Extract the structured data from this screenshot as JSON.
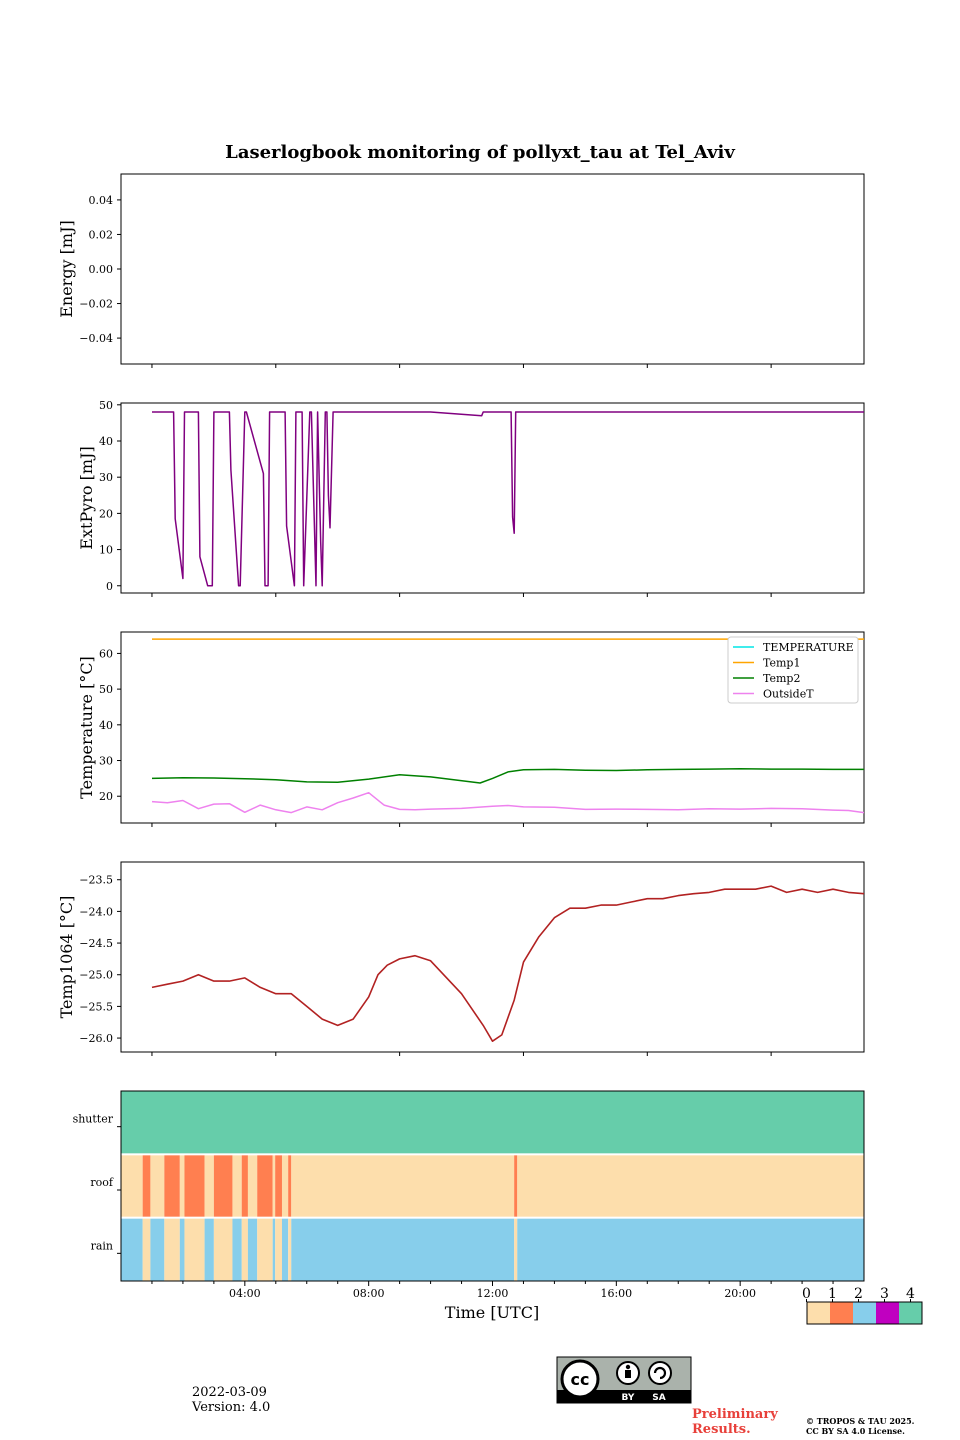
{
  "title": "Laserlogbook monitoring of pollyxt_tau at Tel_Aviv",
  "footer": {
    "date": "2022-03-09",
    "version": "Version: 4.0",
    "preliminary_line1": "Preliminary",
    "preliminary_line2": "Results.",
    "copyright_line1": "© TROPOS & TAU 2025.",
    "copyright_line2": "CC BY SA 4.0 License.",
    "license_badge": {
      "icon": "cc-by-sa-icon",
      "by": "BY",
      "sa": "SA",
      "cc": "cc"
    }
  },
  "chart_data": [
    {
      "type": "line",
      "ylabel": "Energy [mJ]",
      "ylim": [
        -0.055,
        0.055
      ],
      "yticks": [
        0.04,
        0.02,
        0.0,
        -0.02,
        -0.04
      ],
      "ytick_labels": [
        "0.04",
        "0.02",
        "0.00",
        "−0.02",
        "−0.04"
      ],
      "xlim_hours": [
        0,
        24
      ],
      "series": []
    },
    {
      "type": "line",
      "ylabel": "ExtPyro [mJ]",
      "ylim": [
        -2,
        50.5
      ],
      "yticks": [
        50,
        40,
        30,
        20,
        10,
        0
      ],
      "ytick_labels": [
        "50",
        "40",
        "30",
        "20",
        "10",
        "0"
      ],
      "xlim_hours": [
        0,
        24
      ],
      "color": "#800080",
      "series": [
        {
          "x": [
            1.0,
            1.7,
            1.75,
            2.0,
            2.05,
            2.5,
            2.55,
            2.8,
            2.85,
            2.95,
            3.0,
            3.5,
            3.55,
            3.8,
            3.85,
            4.0,
            4.05,
            4.6,
            4.65,
            4.75,
            4.8,
            5.3,
            5.35,
            5.6,
            5.65,
            5.85,
            5.9,
            6.1,
            6.15,
            6.3,
            6.35,
            6.45,
            6.5,
            6.6,
            6.65,
            6.7,
            6.75,
            6.85,
            6.9,
            10.0,
            11.65,
            11.7,
            12.6,
            12.65,
            12.7,
            12.75,
            24.0
          ],
          "y": [
            48,
            48,
            18.5,
            2,
            48,
            48,
            8,
            0,
            0,
            0,
            48,
            48,
            32,
            0,
            0,
            48,
            48,
            31,
            0,
            0,
            48,
            48,
            16.5,
            0,
            48,
            48,
            0,
            48,
            48,
            0,
            48,
            12,
            0,
            48,
            48,
            25,
            16,
            48,
            48,
            48,
            47,
            48,
            48,
            19,
            14.5,
            48,
            48
          ]
        }
      ]
    },
    {
      "type": "line",
      "ylabel": "Temperature [°C]",
      "ylim": [
        12.5,
        66
      ],
      "yticks": [
        60,
        50,
        40,
        30,
        20
      ],
      "ytick_labels": [
        "60",
        "50",
        "40",
        "30",
        "20"
      ],
      "xlim_hours": [
        0,
        24
      ],
      "legend": "top-right",
      "series": [
        {
          "name": "TEMPERATURE",
          "color": "#00e5e5",
          "x": [],
          "y": []
        },
        {
          "name": "Temp1",
          "color": "#ffa500",
          "x": [
            1.0,
            24.0
          ],
          "y": [
            64,
            64
          ]
        },
        {
          "name": "Temp2",
          "color": "#008000",
          "x": [
            1.0,
            2.0,
            3.0,
            4.0,
            5.0,
            6.0,
            7.0,
            8.0,
            9.0,
            10.0,
            11.6,
            12.0,
            12.5,
            13.0,
            14.0,
            15.0,
            16.0,
            17.0,
            18.0,
            19.0,
            20.0,
            21.0,
            22.0,
            23.0,
            24.0
          ],
          "y": [
            25.0,
            25.2,
            25.1,
            24.9,
            24.6,
            24.0,
            23.9,
            24.8,
            26.0,
            25.4,
            23.7,
            25.0,
            26.8,
            27.4,
            27.5,
            27.3,
            27.2,
            27.4,
            27.5,
            27.6,
            27.7,
            27.6,
            27.6,
            27.5,
            27.5
          ]
        },
        {
          "name": "OutsideT",
          "color": "#ee82ee",
          "x": [
            1.0,
            1.5,
            2.0,
            2.5,
            3.0,
            3.5,
            4.0,
            4.5,
            5.0,
            5.5,
            6.0,
            6.5,
            7.0,
            7.5,
            8.0,
            8.5,
            9.0,
            9.5,
            10.0,
            11.0,
            12.0,
            12.5,
            13.0,
            14.0,
            15.0,
            16.0,
            17.0,
            18.0,
            19.0,
            20.0,
            21.0,
            22.0,
            23.0,
            23.5,
            24.0
          ],
          "y": [
            18.5,
            18.2,
            18.8,
            16.5,
            17.8,
            17.9,
            15.5,
            17.5,
            16.2,
            15.4,
            17.0,
            16.2,
            18.2,
            19.5,
            21.0,
            17.5,
            16.3,
            16.2,
            16.4,
            16.6,
            17.2,
            17.4,
            17.0,
            16.9,
            16.3,
            16.4,
            16.3,
            16.2,
            16.5,
            16.4,
            16.6,
            16.5,
            16.1,
            16.0,
            15.4
          ]
        }
      ]
    },
    {
      "type": "line",
      "ylabel": "Temp1064 [°C]",
      "ylim": [
        -26.22,
        -23.22
      ],
      "yticks": [
        -23.5,
        -24.0,
        -24.5,
        -25.0,
        -25.5,
        -26.0
      ],
      "ytick_labels": [
        "−23.5",
        "−24.0",
        "−24.5",
        "−25.0",
        "−25.5",
        "−26.0"
      ],
      "xlim_hours": [
        0,
        24
      ],
      "color": "#b22222",
      "series": [
        {
          "x": [
            1.0,
            1.5,
            2.0,
            2.5,
            3.0,
            3.5,
            4.0,
            4.5,
            5.0,
            5.5,
            6.0,
            6.5,
            7.0,
            7.5,
            8.0,
            8.3,
            8.6,
            9.0,
            9.5,
            10.0,
            11.0,
            11.7,
            12.0,
            12.3,
            12.7,
            13.0,
            13.5,
            14.0,
            14.5,
            15.0,
            15.5,
            16.0,
            16.5,
            17.0,
            17.5,
            18.0,
            18.5,
            19.0,
            19.5,
            20.0,
            20.5,
            21.0,
            21.5,
            22.0,
            22.5,
            23.0,
            23.5,
            24.0
          ],
          "y": [
            -25.2,
            -25.15,
            -25.1,
            -25.0,
            -25.1,
            -25.1,
            -25.05,
            -25.2,
            -25.3,
            -25.3,
            -25.5,
            -25.7,
            -25.8,
            -25.7,
            -25.35,
            -25.0,
            -24.85,
            -24.75,
            -24.7,
            -24.78,
            -25.3,
            -25.8,
            -26.05,
            -25.95,
            -25.4,
            -24.8,
            -24.4,
            -24.1,
            -23.95,
            -23.95,
            -23.9,
            -23.9,
            -23.85,
            -23.8,
            -23.8,
            -23.75,
            -23.72,
            -23.7,
            -23.65,
            -23.65,
            -23.65,
            -23.6,
            -23.7,
            -23.65,
            -23.7,
            -23.65,
            -23.7,
            -23.72
          ]
        }
      ]
    },
    {
      "type": "heatmap",
      "rows": [
        "shutter",
        "roof",
        "rain"
      ],
      "xlabel": "Time [UTC]",
      "xticks_hours": [
        4,
        8,
        12,
        16,
        20
      ],
      "xtick_labels": [
        "04:00",
        "08:00",
        "12:00",
        "16:00",
        "20:00"
      ],
      "xlim_hours": [
        0,
        24
      ],
      "colorbar": {
        "labels": [
          "0",
          "1",
          "2",
          "3",
          "4"
        ],
        "colors": [
          "#fddeac",
          "#ff7f50",
          "#87ceeb",
          "#c000c0",
          "#66cdaa"
        ]
      },
      "segments": {
        "shutter": [
          {
            "from": 0,
            "to": 24,
            "value": 4
          }
        ],
        "roof": [
          {
            "from": 0.0,
            "to": 0.7,
            "value": 0
          },
          {
            "from": 0.7,
            "to": 0.95,
            "value": 1
          },
          {
            "from": 0.95,
            "to": 1.4,
            "value": 0
          },
          {
            "from": 1.4,
            "to": 1.9,
            "value": 1
          },
          {
            "from": 1.9,
            "to": 2.05,
            "value": 0
          },
          {
            "from": 2.05,
            "to": 2.7,
            "value": 1
          },
          {
            "from": 2.7,
            "to": 3.0,
            "value": 0
          },
          {
            "from": 3.0,
            "to": 3.6,
            "value": 1
          },
          {
            "from": 3.6,
            "to": 3.9,
            "value": 0
          },
          {
            "from": 3.9,
            "to": 4.1,
            "value": 1
          },
          {
            "from": 4.1,
            "to": 4.4,
            "value": 0
          },
          {
            "from": 4.4,
            "to": 4.9,
            "value": 1
          },
          {
            "from": 4.9,
            "to": 4.98,
            "value": 0
          },
          {
            "from": 4.98,
            "to": 5.2,
            "value": 1
          },
          {
            "from": 5.2,
            "to": 5.4,
            "value": 0
          },
          {
            "from": 5.4,
            "to": 5.5,
            "value": 1
          },
          {
            "from": 5.5,
            "to": 12.7,
            "value": 0
          },
          {
            "from": 12.7,
            "to": 12.8,
            "value": 1
          },
          {
            "from": 12.8,
            "to": 24.0,
            "value": 0
          }
        ],
        "rain": [
          {
            "from": 0.0,
            "to": 0.7,
            "value": 2
          },
          {
            "from": 0.7,
            "to": 0.95,
            "value": 0
          },
          {
            "from": 0.95,
            "to": 1.4,
            "value": 2
          },
          {
            "from": 1.4,
            "to": 1.9,
            "value": 0
          },
          {
            "from": 1.9,
            "to": 2.05,
            "value": 2
          },
          {
            "from": 2.05,
            "to": 2.7,
            "value": 0
          },
          {
            "from": 2.7,
            "to": 3.0,
            "value": 2
          },
          {
            "from": 3.0,
            "to": 3.6,
            "value": 0
          },
          {
            "from": 3.6,
            "to": 3.9,
            "value": 2
          },
          {
            "from": 3.9,
            "to": 4.1,
            "value": 0
          },
          {
            "from": 4.1,
            "to": 4.4,
            "value": 2
          },
          {
            "from": 4.4,
            "to": 4.9,
            "value": 0
          },
          {
            "from": 4.9,
            "to": 4.98,
            "value": 2
          },
          {
            "from": 4.98,
            "to": 5.2,
            "value": 0
          },
          {
            "from": 5.2,
            "to": 5.4,
            "value": 2
          },
          {
            "from": 5.4,
            "to": 5.5,
            "value": 0
          },
          {
            "from": 5.5,
            "to": 12.7,
            "value": 2
          },
          {
            "from": 12.7,
            "to": 12.8,
            "value": 0
          },
          {
            "from": 12.8,
            "to": 24.0,
            "value": 2
          }
        ]
      }
    }
  ]
}
